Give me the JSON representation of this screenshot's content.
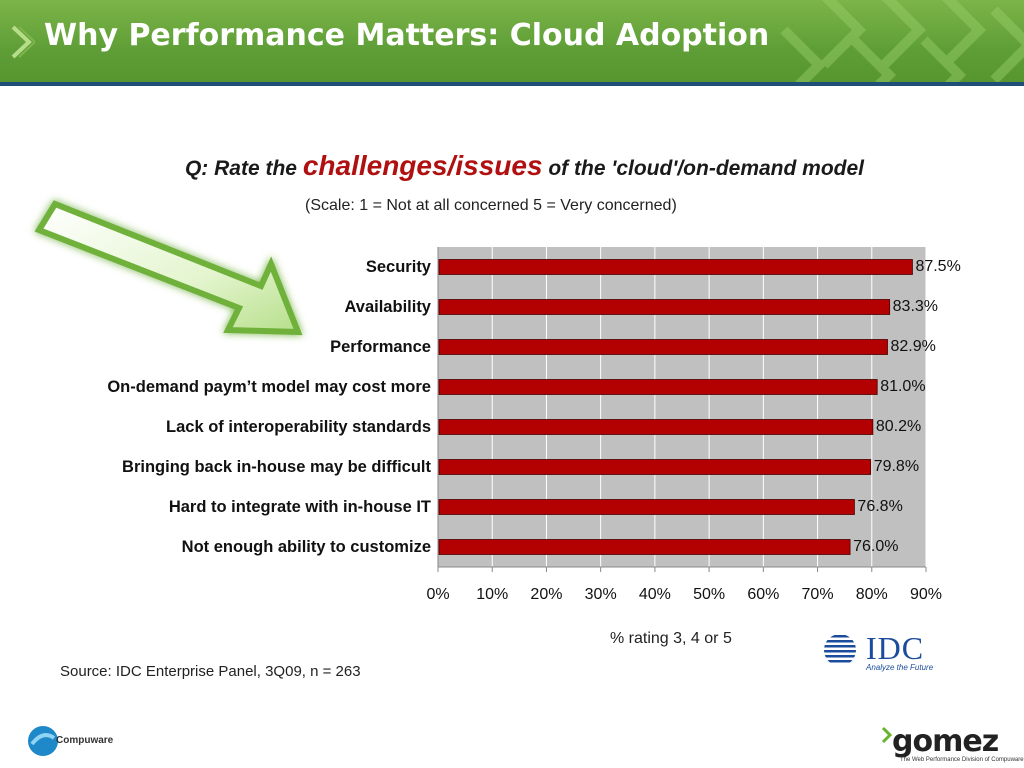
{
  "slide": {
    "title": "Why Performance Matters: Cloud Adoption"
  },
  "chart_data": {
    "type": "bar",
    "orientation": "horizontal",
    "title_prefix": "Q: Rate the",
    "title_emphasis": "challenges/issues",
    "title_suffix": "of the 'cloud'/on-demand model",
    "subtitle": "(Scale: 1 = Not at all concerned  5 = Very concerned)",
    "categories": [
      "Security",
      "Availability",
      "Performance",
      "On-demand paym’t model may cost more",
      "Lack of interoperability standards",
      "Bringing back in-house may be difficult",
      "Hard to integrate with in-house IT",
      "Not enough ability to customize"
    ],
    "values": [
      87.5,
      83.3,
      82.9,
      81.0,
      80.2,
      79.8,
      76.8,
      76.0
    ],
    "value_labels": [
      "87.5%",
      "83.3%",
      "82.9%",
      "81.0%",
      "80.2%",
      "79.8%",
      "76.8%",
      "76.0%"
    ],
    "xlim": [
      0,
      90
    ],
    "ticks": [
      "0%",
      "10%",
      "20%",
      "30%",
      "40%",
      "50%",
      "60%",
      "70%",
      "80%",
      "90%"
    ],
    "xlabel": "% rating 3, 4 or 5",
    "grid": true,
    "bar_color": "#b30000",
    "plot_background": "#c0c0c0"
  },
  "source": "Source: IDC Enterprise Panel, 3Q09, n = 263",
  "logos": {
    "idc": "IDC",
    "idc_tagline": "Analyze the Future",
    "compuware": "Compuware",
    "gomez": "gomez",
    "gomez_tagline": "The Web Performance Division of Compuware"
  },
  "colors": {
    "header_green": "#5f9e37",
    "header_stripe": "#1f4e79",
    "title_emphasis": "#b01010",
    "gomez_accent": "#6ab42d"
  }
}
